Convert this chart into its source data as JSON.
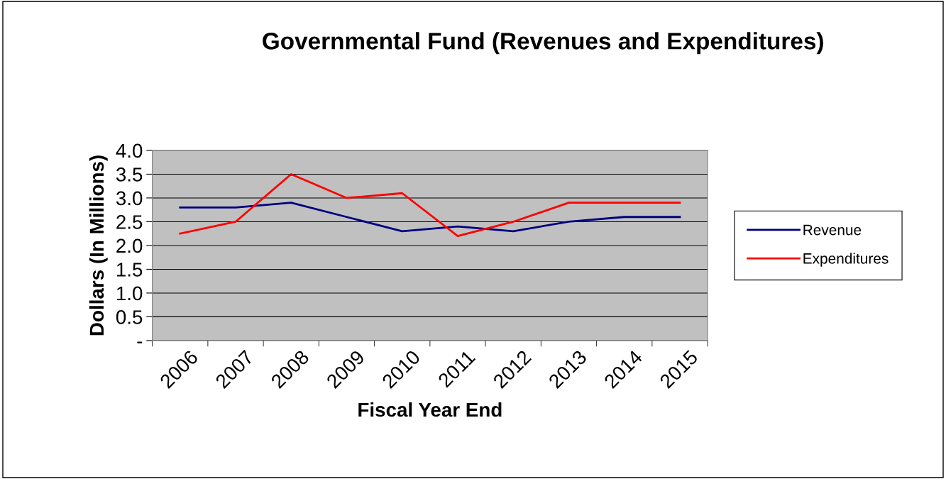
{
  "chart_data": {
    "type": "line",
    "title": "Governmental Fund (Revenues and Expenditures)",
    "xlabel": "Fiscal Year End",
    "ylabel": "Dollars (In Millions)",
    "categories": [
      "2006",
      "2007",
      "2008",
      "2009",
      "2010",
      "2011",
      "2012",
      "2013",
      "2014",
      "2015"
    ],
    "series": [
      {
        "name": "Revenue",
        "color": "#000080",
        "values": [
          2.8,
          2.8,
          2.9,
          2.6,
          2.3,
          2.4,
          2.3,
          2.5,
          2.6,
          2.6
        ]
      },
      {
        "name": "Expenditures",
        "color": "#ff0000",
        "values": [
          2.25,
          2.5,
          3.5,
          3.0,
          3.1,
          2.2,
          2.5,
          2.9,
          2.9,
          2.9
        ]
      }
    ],
    "ylim": [
      0.0,
      4.0
    ],
    "yticks": [
      {
        "value": 0,
        "label": "-"
      },
      0.5,
      {
        "value": 1,
        "label": "1.0"
      },
      1.5,
      {
        "value": 2,
        "label": "2.0"
      },
      2.5,
      {
        "value": 3,
        "label": "3.0"
      },
      3.5,
      {
        "value": 4,
        "label": "4.0"
      }
    ],
    "grid": "y",
    "legend": "right",
    "marker": "none",
    "line_style": "solid"
  }
}
